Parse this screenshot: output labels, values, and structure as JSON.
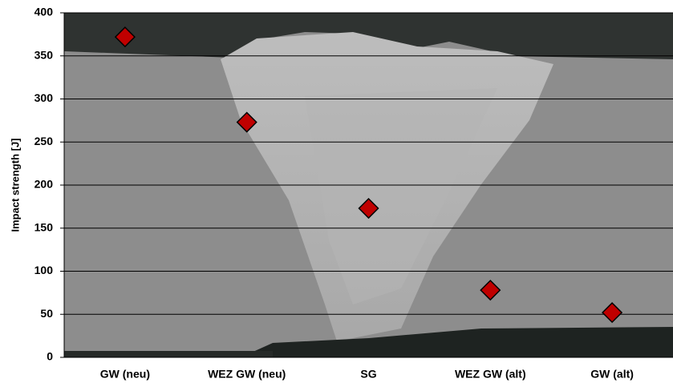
{
  "chart_data": {
    "type": "scatter",
    "y_label": "Impact strength [J]",
    "categories": [
      "GW (neu)",
      "WEZ GW (neu)",
      "SG",
      "WEZ GW (alt)",
      "GW (alt)"
    ],
    "values": [
      372,
      273,
      173,
      78,
      52
    ],
    "color": "#c00000",
    "ylim": [
      0,
      400
    ],
    "yticks": [
      0,
      50,
      100,
      150,
      200,
      250,
      300,
      350,
      400
    ],
    "grid": true
  }
}
